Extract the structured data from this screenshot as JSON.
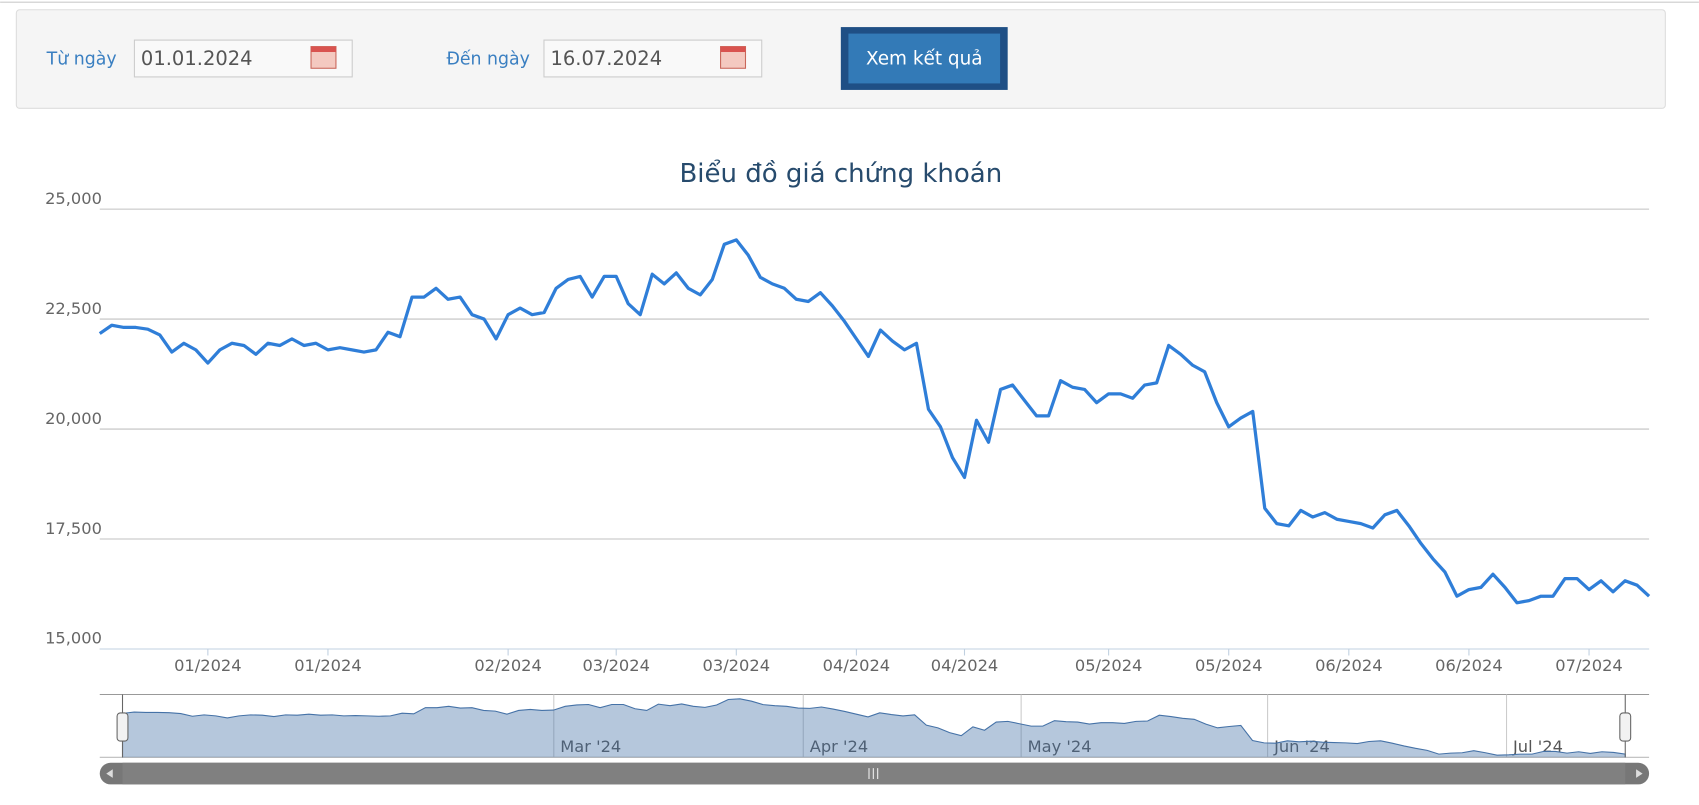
{
  "form": {
    "from_label": "Từ ngày",
    "from_value": "01.01.2024",
    "to_label": "Đến ngày",
    "to_value": "16.07.2024",
    "button": "Xem kết quả"
  },
  "chart_data": {
    "type": "line",
    "title": "Biểu đồ giá chứng khoán",
    "categories": [
      null,
      null,
      null,
      null,
      null,
      null,
      null,
      null,
      null,
      "01/2024",
      null,
      null,
      null,
      null,
      null,
      null,
      null,
      null,
      null,
      "01/2024",
      null,
      null,
      null,
      null,
      null,
      null,
      null,
      null,
      null,
      null,
      null,
      null,
      null,
      null,
      "02/2024",
      null,
      null,
      null,
      null,
      null,
      null,
      null,
      null,
      "03/2024",
      null,
      null,
      null,
      null,
      null,
      null,
      null,
      null,
      null,
      "03/2024",
      null,
      null,
      null,
      null,
      null,
      null,
      null,
      null,
      null,
      "04/2024",
      null,
      null,
      null,
      null,
      null,
      null,
      null,
      null,
      "04/2024",
      null,
      null,
      null,
      null,
      null,
      null,
      null,
      null,
      null,
      null,
      null,
      "05/2024",
      null,
      null,
      null,
      null,
      null,
      null,
      null,
      null,
      null,
      "05/2024",
      null,
      null,
      null,
      null,
      null,
      null,
      null,
      null,
      null,
      "06/2024",
      null,
      null,
      null,
      null,
      null,
      null,
      null,
      null,
      null,
      "06/2024",
      null,
      null,
      null,
      null,
      null,
      null,
      null,
      null,
      null,
      "07/2024",
      null,
      null,
      null,
      null,
      null
    ],
    "series": [
      {
        "color": "#2f7ed8",
        "values": [
          22170,
          22360,
          22310,
          22310,
          22270,
          22140,
          21750,
          21950,
          21800,
          21500,
          21800,
          21950,
          21900,
          21700,
          21950,
          21900,
          22050,
          21900,
          21950,
          21800,
          21850,
          21800,
          21750,
          21800,
          22200,
          22100,
          23000,
          23000,
          23200,
          22950,
          23000,
          22600,
          22500,
          22050,
          22600,
          22750,
          22600,
          22650,
          23200,
          23400,
          23470,
          23000,
          23470,
          23470,
          22850,
          22600,
          23520,
          23300,
          23550,
          23200,
          23050,
          23400,
          24200,
          24300,
          23950,
          23450,
          23300,
          23200,
          22950,
          22900,
          23100,
          22800,
          22450,
          22050,
          21650,
          22250,
          22000,
          21800,
          21950,
          20450,
          20050,
          19350,
          18900,
          20200,
          19700,
          20900,
          21000,
          20650,
          20300,
          20300,
          21100,
          20950,
          20900,
          20600,
          20800,
          20800,
          20700,
          21000,
          21050,
          21900,
          21700,
          21450,
          21300,
          20600,
          20050,
          20250,
          20400,
          18200,
          17850,
          17800,
          18150,
          18000,
          18100,
          17950,
          17900,
          17850,
          17750,
          18050,
          18150,
          17800,
          17400,
          17050,
          16750,
          16200,
          16350,
          16400,
          16700,
          16400,
          16050,
          16100,
          16200,
          16200,
          16600,
          16600,
          16350,
          16550,
          16300,
          16550,
          16450,
          16200
        ]
      }
    ],
    "ylim": [
      15000,
      25000
    ],
    "yticks": [
      {
        "value": 15000,
        "label": "15,000"
      },
      {
        "value": 17500,
        "label": "17,500"
      },
      {
        "value": 20000,
        "label": "20,000"
      },
      {
        "value": 22500,
        "label": "22,500"
      },
      {
        "value": 25000,
        "label": "25,000"
      }
    ],
    "grid": true,
    "navigator_labels": [
      "Mar '24",
      "Apr '24",
      "May '24",
      "Jun '24",
      "Jul '24"
    ]
  }
}
